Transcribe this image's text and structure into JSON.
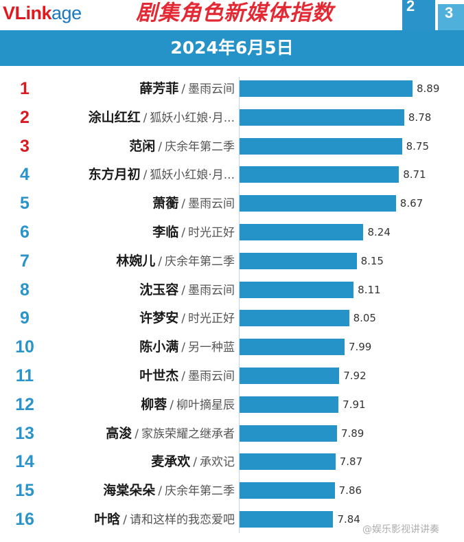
{
  "header": {
    "logo": {
      "v": "V",
      "link": "Link",
      "age": "age"
    },
    "title": "剧集角色新媒体指数",
    "podium": {
      "second": "2",
      "third": "3"
    }
  },
  "date": "2024年6月5日",
  "colors": {
    "bar": "#2693c8",
    "rank_top": "#d81b22",
    "rank_rest": "#2a93c9",
    "title": "#e32a34"
  },
  "watermark": "@娱乐影视讲讲奏",
  "chart_data": {
    "type": "bar",
    "orientation": "horizontal",
    "title": "剧集角色新媒体指数",
    "subtitle": "2024年6月5日",
    "xlim": [
      6.6,
      8.89
    ],
    "grid": false,
    "legend": "none",
    "rows": [
      {
        "rank": "1",
        "name": "薛芳菲",
        "drama": "墨雨云间",
        "value": 8.89
      },
      {
        "rank": "2",
        "name": "涂山红红",
        "drama": "狐妖小红娘·月...",
        "value": 8.78
      },
      {
        "rank": "3",
        "name": "范闲",
        "drama": "庆余年第二季",
        "value": 8.75
      },
      {
        "rank": "4",
        "name": "东方月初",
        "drama": "狐妖小红娘·月...",
        "value": 8.71
      },
      {
        "rank": "5",
        "name": "萧蘅",
        "drama": "墨雨云间",
        "value": 8.67
      },
      {
        "rank": "6",
        "name": "李临",
        "drama": "时光正好",
        "value": 8.24
      },
      {
        "rank": "7",
        "name": "林婉儿",
        "drama": "庆余年第二季",
        "value": 8.15
      },
      {
        "rank": "8",
        "name": "沈玉容",
        "drama": "墨雨云间",
        "value": 8.11
      },
      {
        "rank": "9",
        "name": "许梦安",
        "drama": "时光正好",
        "value": 8.05
      },
      {
        "rank": "10",
        "name": "陈小满",
        "drama": "另一种蓝",
        "value": 7.99
      },
      {
        "rank": "11",
        "name": "叶世杰",
        "drama": "墨雨云间",
        "value": 7.92
      },
      {
        "rank": "12",
        "name": "柳蓉",
        "drama": "柳叶摘星辰",
        "value": 7.91
      },
      {
        "rank": "13",
        "name": "高浚",
        "drama": "家族荣耀之继承者",
        "value": 7.89
      },
      {
        "rank": "14",
        "name": "麦承欢",
        "drama": "承欢记",
        "value": 7.87
      },
      {
        "rank": "15",
        "name": "海棠朵朵",
        "drama": "庆余年第二季",
        "value": 7.86
      },
      {
        "rank": "16",
        "name": "叶晗",
        "drama": "请和这样的我恋爱吧",
        "value": 7.84
      }
    ]
  }
}
